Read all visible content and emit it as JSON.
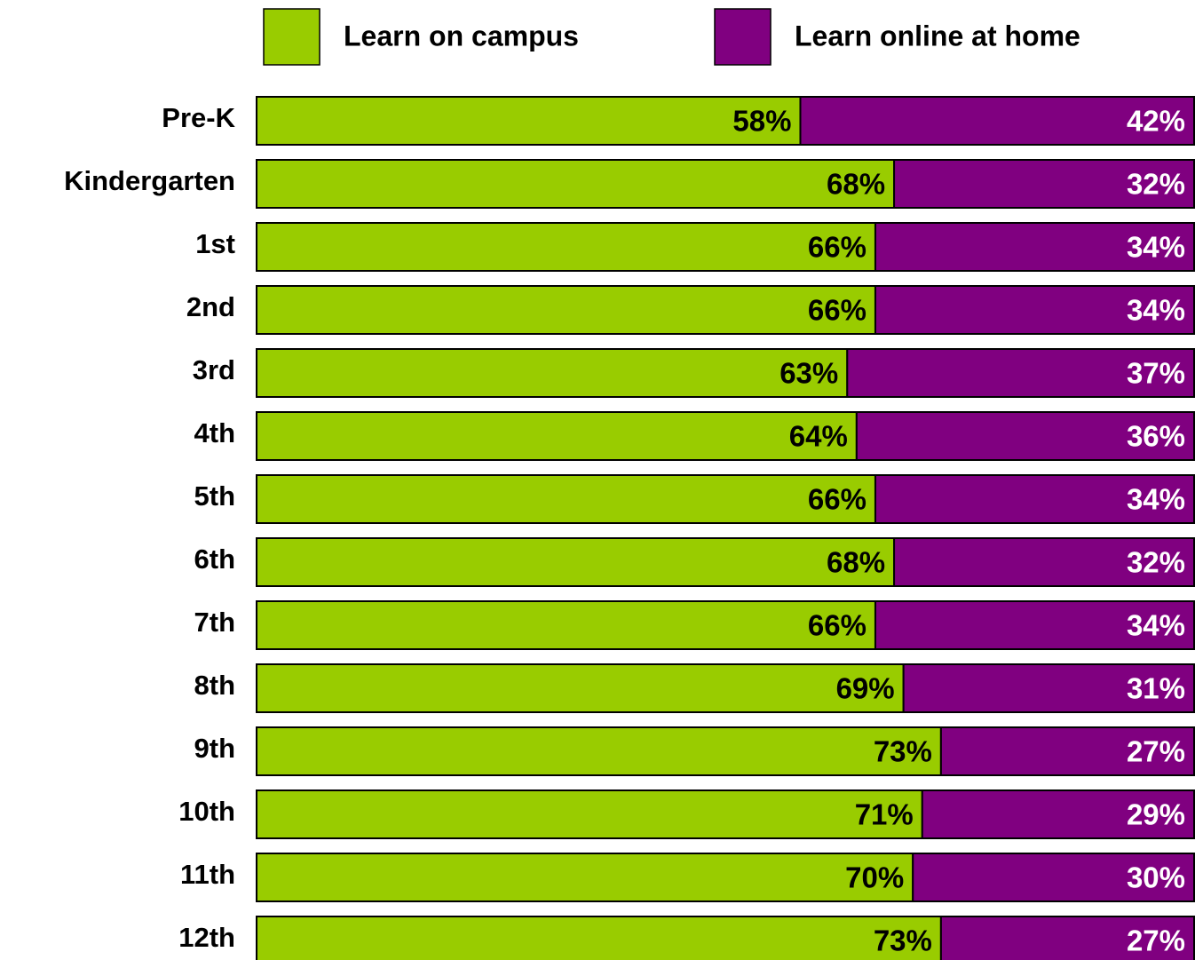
{
  "chart_data": {
    "type": "stacked-bar-horizontal",
    "categories": [
      "Pre-K",
      "Kindergarten",
      "1st",
      "2nd",
      "3rd",
      "4th",
      "5th",
      "6th",
      "7th",
      "8th",
      "9th",
      "10th",
      "11th",
      "12th"
    ],
    "series": [
      {
        "name": "Learn on campus",
        "color": "#99cc00",
        "label_color": "#000000",
        "values": [
          58,
          68,
          66,
          66,
          63,
          64,
          66,
          68,
          66,
          69,
          73,
          71,
          70,
          73
        ],
        "value_labels": [
          "58%",
          "68%",
          "66%",
          "66%",
          "63%",
          "64%",
          "66%",
          "68%",
          "66%",
          "69%",
          "73%",
          "71%",
          "70%",
          "73%"
        ]
      },
      {
        "name": "Learn online at home",
        "color": "#800080",
        "label_color": "#ffffff",
        "values": [
          42,
          32,
          34,
          34,
          37,
          36,
          34,
          32,
          34,
          31,
          27,
          29,
          30,
          27
        ],
        "value_labels": [
          "42%",
          "32%",
          "34%",
          "34%",
          "37%",
          "36%",
          "34%",
          "32%",
          "34%",
          "31%",
          "27%",
          "29%",
          "30%",
          "27%"
        ]
      }
    ],
    "xlim": [
      0,
      100
    ],
    "legend": "top"
  }
}
